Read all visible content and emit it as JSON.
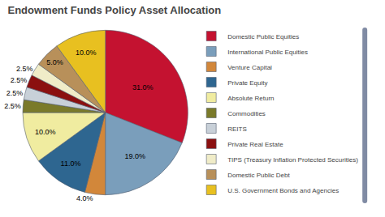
{
  "chart_data": {
    "type": "pie",
    "title": "Endowment Funds Policy Asset Allocation",
    "categories": [
      "Domestic Public Equities",
      "International Public Equities",
      "Venture Capital",
      "Private Equity",
      "Absolute Return",
      "Commodities",
      "REITS",
      "Private Real Estate",
      "TIPS (Treasury Inflation Protected Securities)",
      "Domestic Public Debt",
      "U.S. Government Bonds and Agencies"
    ],
    "values": [
      31.0,
      19.0,
      4.0,
      11.0,
      10.0,
      2.5,
      2.5,
      2.5,
      2.5,
      5.0,
      10.0
    ],
    "value_labels": [
      "31.0%",
      "19.0%",
      "4.0%",
      "11.0%",
      "10.0%",
      "2.5%",
      "2.5%",
      "2.5%",
      "2.5%",
      "5.0%",
      "10.0%"
    ],
    "colors": [
      "#C41230",
      "#7A9EBB",
      "#D2873A",
      "#2E6690",
      "#F0ECA0",
      "#7A7A2A",
      "#C8D0D8",
      "#8B1010",
      "#F0ECC8",
      "#B8905A",
      "#E8C020"
    ],
    "data_labels": true,
    "legend": "right"
  }
}
